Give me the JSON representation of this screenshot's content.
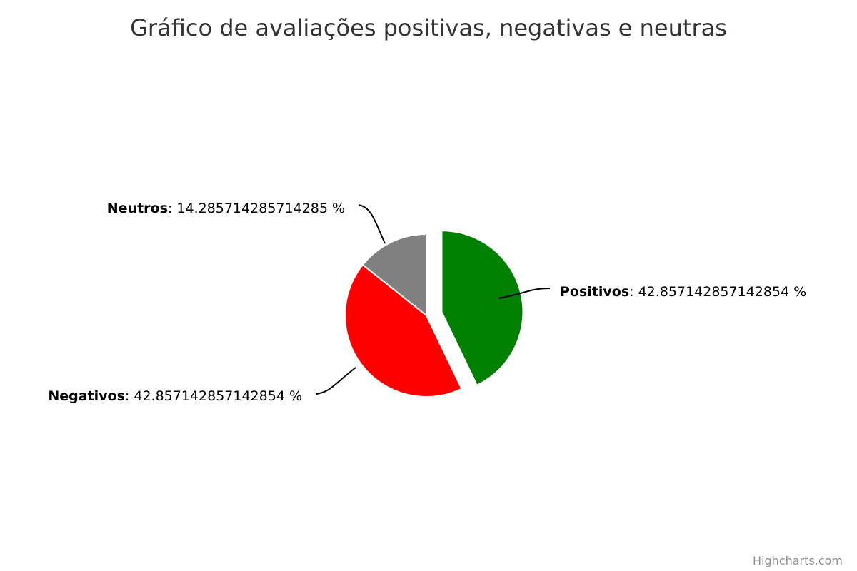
{
  "chart_data": {
    "type": "pie",
    "title": "Gráfico de avaliações positivas, negativas e neutras",
    "slices": [
      {
        "name": "Positivos",
        "value": 42.857142857142854,
        "value_label": ": 42.857142857142854 %",
        "color": "#008000",
        "sliced": true
      },
      {
        "name": "Negativos",
        "value": 42.857142857142854,
        "value_label": ": 42.857142857142854 %",
        "color": "#ff0000",
        "sliced": false
      },
      {
        "name": "Neutros",
        "value": 14.285714285714285,
        "value_label": ": 14.285714285714285 %",
        "color": "#808080",
        "sliced": false
      }
    ]
  },
  "credits": {
    "text": "Highcharts.com"
  }
}
